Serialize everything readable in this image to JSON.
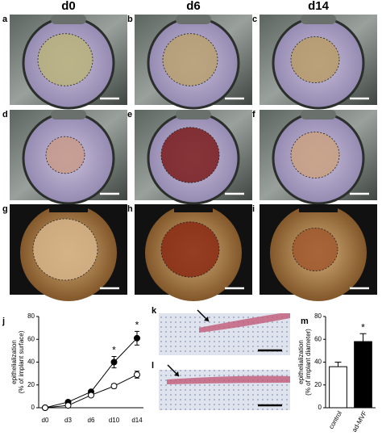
{
  "column_headers": [
    "d0",
    "d6",
    "d14"
  ],
  "panel_labels": [
    "a",
    "b",
    "c",
    "d",
    "e",
    "f",
    "g",
    "h",
    "i"
  ],
  "histology_labels": [
    "k",
    "l"
  ],
  "chart_data": [
    {
      "type": "line",
      "panel_label": "j",
      "ylabel": "epithelialization\n(% of implant surface)",
      "categories": [
        "d0",
        "d3",
        "d6",
        "d10",
        "d14"
      ],
      "series": [
        {
          "color": "#000000",
          "marker_fill": "#000000",
          "values": [
            0,
            5,
            14,
            40,
            61
          ],
          "errors": [
            0,
            1,
            1.5,
            5,
            6
          ]
        },
        {
          "color": "#000000",
          "marker_fill": "#ffffff",
          "values": [
            0,
            2,
            11,
            19,
            29
          ],
          "errors": [
            0,
            1,
            1.5,
            2,
            3
          ]
        }
      ],
      "ylim": [
        0,
        80
      ],
      "yticks": [
        0,
        20,
        40,
        60,
        80
      ],
      "annotations": [
        {
          "label": "*",
          "category": "d10"
        },
        {
          "label": "*",
          "category": "d14"
        }
      ]
    },
    {
      "type": "bar",
      "panel_label": "m",
      "ylabel": "epithelialization\n(% of implant diameter)",
      "categories": [
        "control",
        "ad-MVF"
      ],
      "values": [
        36,
        58
      ],
      "errors": [
        4,
        7
      ],
      "colors": [
        "#ffffff",
        "#000000"
      ],
      "ylim": [
        0,
        80
      ],
      "yticks": [
        0,
        20,
        40,
        60,
        80
      ],
      "annotations": [
        {
          "label": "*",
          "category": "ad-MVF"
        }
      ]
    }
  ]
}
